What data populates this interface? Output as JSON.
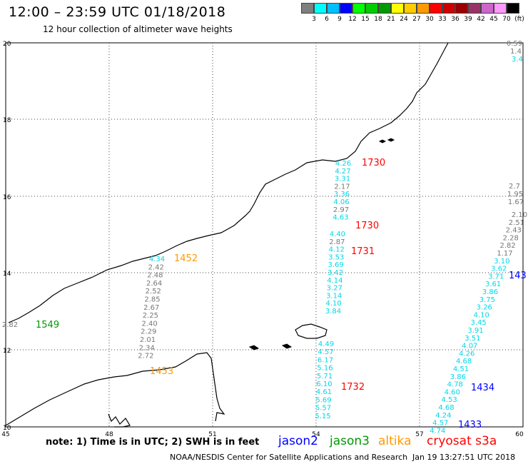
{
  "title": "12:00 – 23:59 UTC 01/18/2018",
  "subtitle": "12 hour collection of altimeter wave heights",
  "legend": {
    "levels": [
      "3",
      "6",
      "9",
      "12",
      "15",
      "18",
      "21",
      "24",
      "27",
      "30",
      "33",
      "36",
      "39",
      "42",
      "45",
      "70",
      "(ft)"
    ],
    "colors": [
      "#7f7f7f",
      "#00ffff",
      "#00bfff",
      "#0000ff",
      "#00ff00",
      "#00cc00",
      "#009900",
      "#ffff00",
      "#ffcc00",
      "#ff9900",
      "#ff0000",
      "#cc0000",
      "#990000",
      "#993366",
      "#cc66cc",
      "#ff99ff",
      "#000000"
    ]
  },
  "axes": {
    "x_ticks": [
      "45",
      "48",
      "51",
      "54",
      "57",
      "60"
    ],
    "y_ticks": [
      "20",
      "18",
      "16",
      "14",
      "12",
      "10"
    ]
  },
  "tracks": [
    {
      "name": "cryosat-1730a",
      "color": "#ff0000",
      "time": "1730",
      "values": [
        "4.26",
        "4.27",
        "3.31",
        "2.17",
        "3.36",
        "4.06",
        "2.97",
        "4.63"
      ]
    },
    {
      "name": "cryosat-1730b",
      "color": "#ff0000",
      "time": "1730",
      "values": [
        "4.40",
        "2.87",
        "4.12",
        "3.53",
        "3.69",
        "3.42",
        "4.14",
        "3.27",
        "3.14",
        "4.10",
        "3.84"
      ]
    },
    {
      "name": "cryosat-1731",
      "color": "#ff0000",
      "time": "1731",
      "values": []
    },
    {
      "name": "cryosat-1732",
      "color": "#ff0000",
      "time": "1732",
      "values": [
        "4.49",
        "4.57",
        "6.17",
        "5.16",
        "5.71",
        "6.10",
        "4.61",
        "5.69",
        "5.57",
        "5.15"
      ]
    },
    {
      "name": "altika-1452",
      "color": "#ff9900",
      "time": "1452",
      "values": [
        "4.34",
        "2.42",
        "2.48",
        "2.64",
        "2.52",
        "2.85",
        "2.67",
        "2.25",
        "2.40",
        "2.29",
        "2.01",
        "2.34",
        "2.72"
      ]
    },
    {
      "name": "altika-1453",
      "color": "#ff9900",
      "time": "1453",
      "values": []
    },
    {
      "name": "jason3-1549",
      "color": "#009900",
      "time": "1549",
      "values": [
        "2.82"
      ]
    },
    {
      "name": "jason2-1434",
      "color": "#0000ff",
      "time": "1434",
      "values": [
        "2.10",
        "2.51",
        "2.43",
        "2.28",
        "2.82",
        "1.17",
        "3.10",
        "3.62",
        "3.71",
        "3.61",
        "3.86",
        "3.75",
        "3.26",
        "4.10",
        "3.45",
        "3.91",
        "3.51",
        "4.07",
        "4.26",
        "4.68",
        "4.51",
        "3.86",
        "4.78",
        "4.60",
        "4.53",
        "4.68",
        "4.24",
        "4.57",
        "4.74"
      ]
    },
    {
      "name": "jason2-143x",
      "color": "#0000ff",
      "time": "143",
      "values": []
    },
    {
      "name": "jason2-1433",
      "color": "#0000ff",
      "time": "1433",
      "values": []
    },
    {
      "name": "edge-top",
      "color": "#00ffff",
      "time": "",
      "values": [
        "0.59",
        "1.4",
        "3.4"
      ]
    },
    {
      "name": "edge-mid",
      "color": "#777777",
      "time": "",
      "values": [
        "2.7",
        "1.95",
        "1.67"
      ]
    }
  ],
  "note": "note: 1) Time is in UTC; 2) SWH is in feet",
  "satellites": [
    {
      "label": "jason2",
      "color": "#0000ff"
    },
    {
      "label": "jason3",
      "color": "#009900"
    },
    {
      "label": "altika",
      "color": "#ff9900"
    },
    {
      "label": "cryosat s3a",
      "color": "#ff0000"
    }
  ],
  "credit": "NOAA/NESDIS Center for Satellite Applications and Research",
  "stamp": "Jan 19 13:27:51 UTC 2018"
}
